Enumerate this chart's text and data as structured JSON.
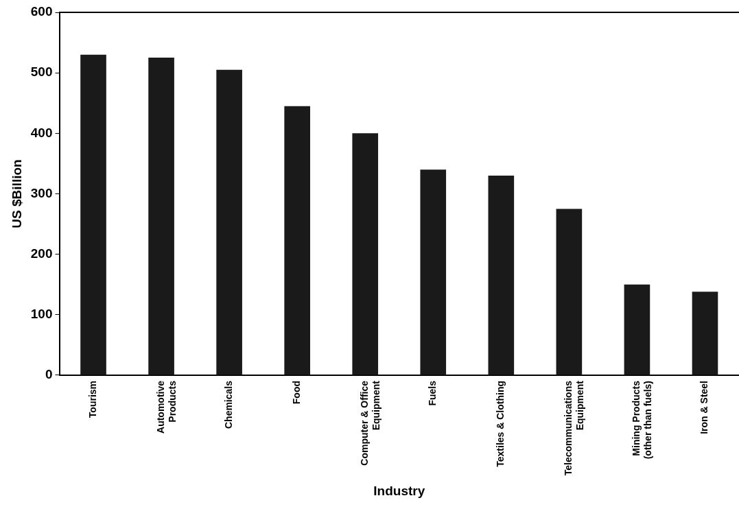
{
  "chart_data": {
    "type": "bar",
    "xlabel": "Industry",
    "ylabel": "US $Billion",
    "categories": [
      "Tourism",
      "Automotive\nProducts",
      "Chemicals",
      "Food",
      "Computer & Office\nEquipment",
      "Fuels",
      "Textiles & Clothing",
      "Telecommunications\nEquipment",
      "Mining Products\n(other than fuels)",
      "Iron & Steel"
    ],
    "values": [
      530,
      525,
      505,
      445,
      400,
      340,
      330,
      275,
      150,
      138
    ],
    "color": "#1a1a1a",
    "ylim": [
      0,
      600
    ],
    "yticks": [
      0,
      100,
      200,
      300,
      400,
      500,
      600
    ],
    "grid": false,
    "legend": false
  }
}
